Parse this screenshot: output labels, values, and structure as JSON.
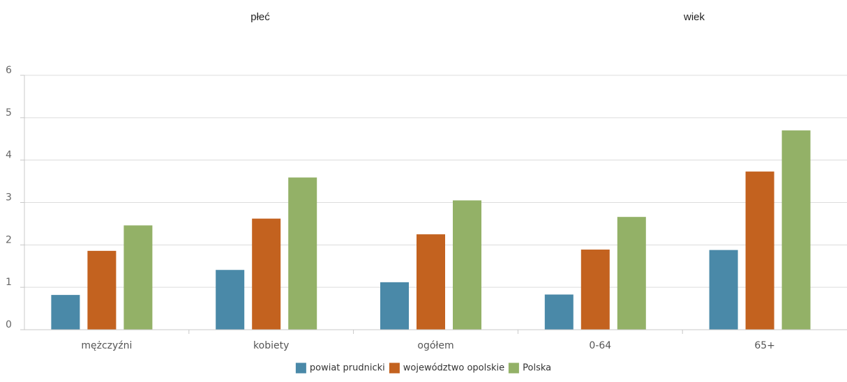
{
  "headers": {
    "left": "płeć",
    "right": "wiek"
  },
  "chart_data": {
    "type": "bar",
    "categories": [
      "mężczyźni",
      "kobiety",
      "ogółem",
      "0-64",
      "65+"
    ],
    "series": [
      {
        "name": "powiat prudnicki",
        "color": "#4a89a8",
        "values": [
          0.82,
          1.41,
          1.12,
          0.83,
          1.88
        ]
      },
      {
        "name": "województwo opolskie",
        "color": "#c3621f",
        "values": [
          1.86,
          2.62,
          2.25,
          1.89,
          3.73
        ]
      },
      {
        "name": "Polska",
        "color": "#93b167",
        "values": [
          2.46,
          3.59,
          3.05,
          2.66,
          4.7
        ]
      }
    ],
    "yticks": [
      "0",
      "1",
      "2",
      "3",
      "4",
      "5",
      "6"
    ],
    "ylim": [
      0,
      6
    ],
    "grid": true,
    "legend_position": "bottom-center"
  }
}
